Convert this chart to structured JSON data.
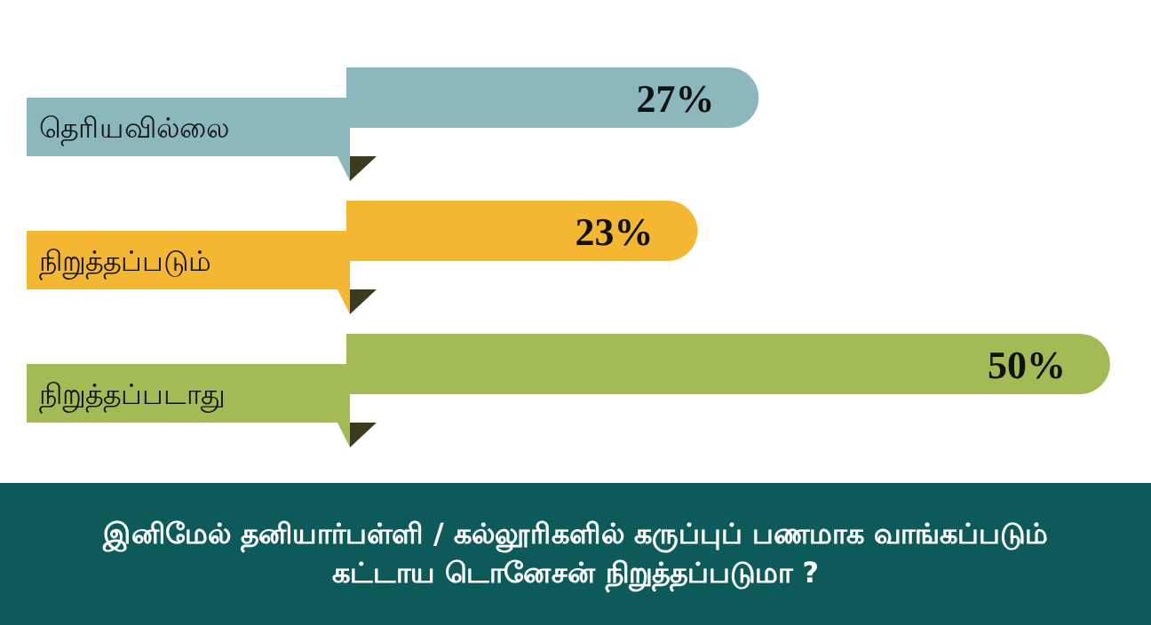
{
  "chart_data": {
    "type": "bar",
    "orientation": "horizontal",
    "title": "இனிமேல் தனியார்பள்ளி / கல்லூரிகளில் கருப்புப் பணமாக வாங்கப்படும் கட்டாய டொனேசன் நிறுத்தப்படுமா ?",
    "categories": [
      "தெரியவில்லை",
      "நிறுத்தப்படும்",
      "நிறுத்தப்படாது"
    ],
    "values": [
      27,
      23,
      50
    ],
    "value_labels": [
      "27%",
      "23%",
      "50%"
    ],
    "colors": [
      "#8ab8bd",
      "#f3b731",
      "#a3bb55"
    ]
  }
}
